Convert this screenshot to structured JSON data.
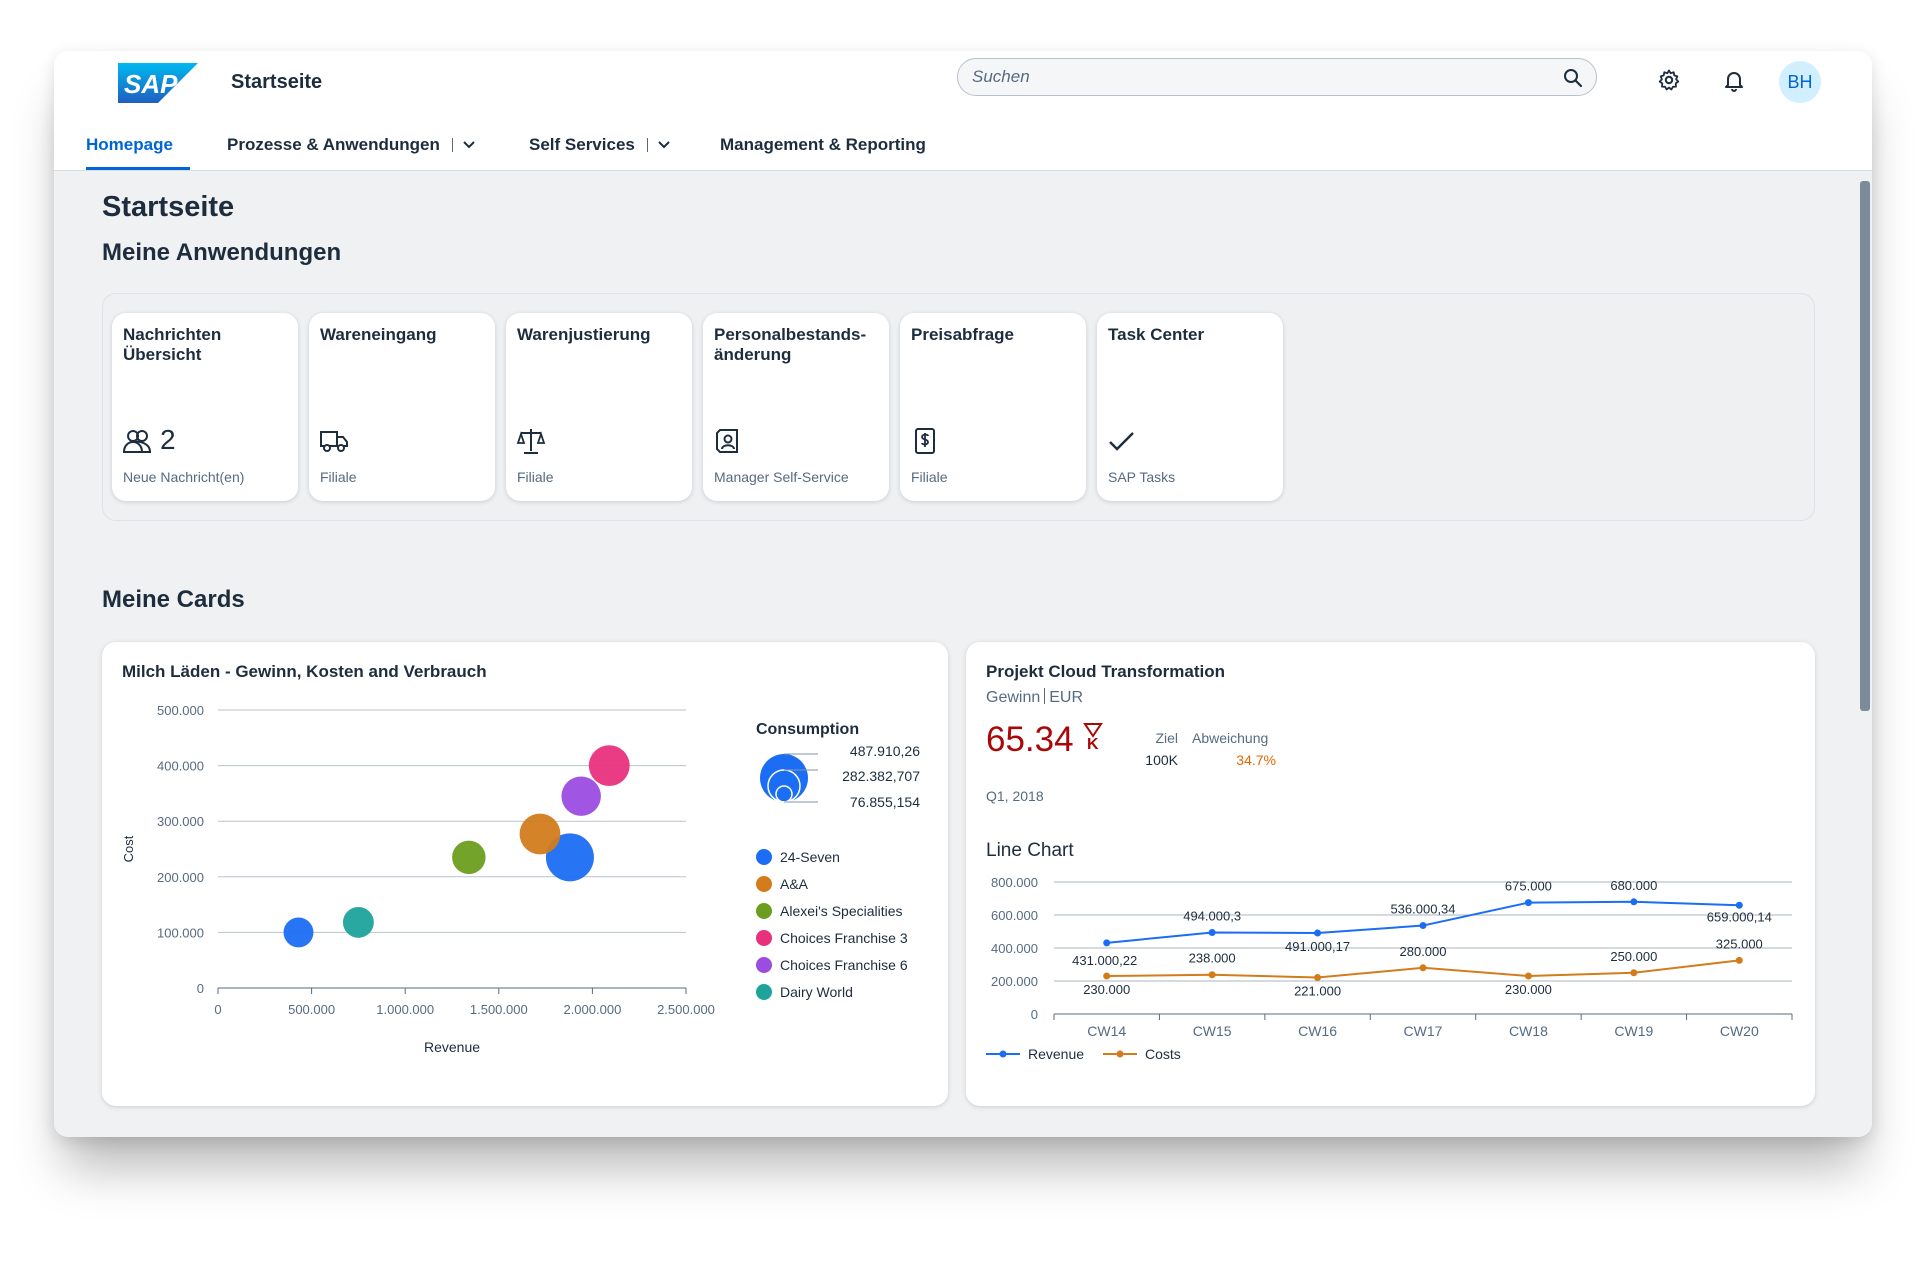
{
  "shell": {
    "logo_text": "SAP",
    "title": "Startseite",
    "search_placeholder": "Suchen",
    "avatar_initials": "BH"
  },
  "nav": [
    {
      "label": "Homepage"
    },
    {
      "label": "Prozesse & Anwendungen"
    },
    {
      "label": "Self Services"
    },
    {
      "label": "Management & Reporting"
    }
  ],
  "page": {
    "title": "Startseite",
    "section_apps": "Meine Anwendungen",
    "section_cards": "Meine Cards"
  },
  "tiles": [
    {
      "title": "Nachrichten Übersicht",
      "icon": "people-icon",
      "count": "2",
      "subtitle": "Neue Nachricht(en)"
    },
    {
      "title": "Wareneingang",
      "icon": "truck-icon",
      "count": "",
      "subtitle": "Filiale"
    },
    {
      "title": "Warenjustierung",
      "icon": "scale-icon",
      "count": "",
      "subtitle": "Filiale"
    },
    {
      "title": "Personalbestands- änderung",
      "icon": "personnel-icon",
      "count": "",
      "subtitle": "Manager Self-Service"
    },
    {
      "title": "Preisabfrage",
      "icon": "price-icon",
      "count": "",
      "subtitle": "Filiale"
    },
    {
      "title": "Task Center",
      "icon": "checkmark-icon",
      "count": "",
      "subtitle": "SAP Tasks"
    }
  ],
  "bubble_card": {
    "title": "Milch Läden - Gewinn, Kosten and Verbrauch",
    "size_legend_title": "Consumption",
    "size_legend_values": [
      "487.910,26",
      "282.382,707",
      "76.855,154"
    ]
  },
  "kpi_card": {
    "title": "Projekt Cloud Transformation",
    "subtitle_main": "Gewinn",
    "subtitle_unit": "EUR",
    "value": "65.34",
    "scale": "K",
    "target_label": "Ziel",
    "target_value": "100K",
    "deviation_label": "Abweichung",
    "deviation_value": "34.7%",
    "period": "Q1, 2018",
    "line_chart_title": "Line Chart"
  },
  "colors": {
    "brand": "#0064d9",
    "negative": "#aa0808",
    "critical": "#e76500",
    "revenue": "#1b6ef3",
    "costs": "#d27c1c"
  },
  "chart_data": [
    {
      "type": "scatter",
      "title": "Milch Läden - Gewinn, Kosten and Verbrauch",
      "xlabel": "Revenue",
      "ylabel": "Cost",
      "xlim": [
        0,
        2500000
      ],
      "ylim": [
        0,
        500000
      ],
      "x_ticks": [
        "0",
        "500.000",
        "1.000.000",
        "1.500.000",
        "2.000.000",
        "2.500.000"
      ],
      "y_ticks": [
        "0",
        "100.000",
        "200.000",
        "300.000",
        "400.000",
        "500.000"
      ],
      "grid": true,
      "legend_position": "right",
      "series": [
        {
          "name": "24-Seven",
          "color": "#1b6ef3",
          "points": [
            {
              "x": 430000,
              "y": 100000,
              "size": 76855
            },
            {
              "x": 1880000,
              "y": 235000,
              "size": 487910
            }
          ]
        },
        {
          "name": "A&A",
          "color": "#d27c1c",
          "points": [
            {
              "x": 1720000,
              "y": 277000,
              "size": 282382
            }
          ]
        },
        {
          "name": "Alexei's Specialities",
          "color": "#6c9e1d",
          "points": [
            {
              "x": 1340000,
              "y": 235000,
              "size": 130000
            }
          ]
        },
        {
          "name": "Choices Franchise 3",
          "color": "#e8317d",
          "points": [
            {
              "x": 2090000,
              "y": 400000,
              "size": 282382
            }
          ]
        },
        {
          "name": "Choices Franchise 6",
          "color": "#9b4de0",
          "points": [
            {
              "x": 1940000,
              "y": 345000,
              "size": 250000
            }
          ]
        },
        {
          "name": "Dairy World",
          "color": "#1ea39c",
          "points": [
            {
              "x": 750000,
              "y": 118000,
              "size": 90000
            }
          ]
        }
      ]
    },
    {
      "type": "line",
      "title": "Line Chart",
      "categories": [
        "CW14",
        "CW15",
        "CW16",
        "CW17",
        "CW18",
        "CW19",
        "CW20"
      ],
      "ylim": [
        0,
        800000
      ],
      "y_ticks": [
        "0",
        "200.000",
        "400.000",
        "600.000",
        "800.000"
      ],
      "grid": true,
      "legend_position": "bottom-left",
      "series": [
        {
          "name": "Revenue",
          "color": "#1b6ef3",
          "values": [
            431000.22,
            494000.3,
            491000.17,
            536000.34,
            675000,
            680000,
            659000.14
          ],
          "labels": [
            "431.000,22",
            "494.000,3",
            "491.000,17",
            "536.000,34",
            "675.000",
            "680.000",
            "659.000,14"
          ]
        },
        {
          "name": "Costs",
          "color": "#d27c1c",
          "values": [
            230000,
            238000,
            221000,
            280000,
            230000,
            250000,
            325000
          ],
          "labels": [
            "230.000",
            "238.000",
            "221.000",
            "280.000",
            "230.000",
            "250.000",
            "325.000"
          ]
        }
      ]
    }
  ]
}
